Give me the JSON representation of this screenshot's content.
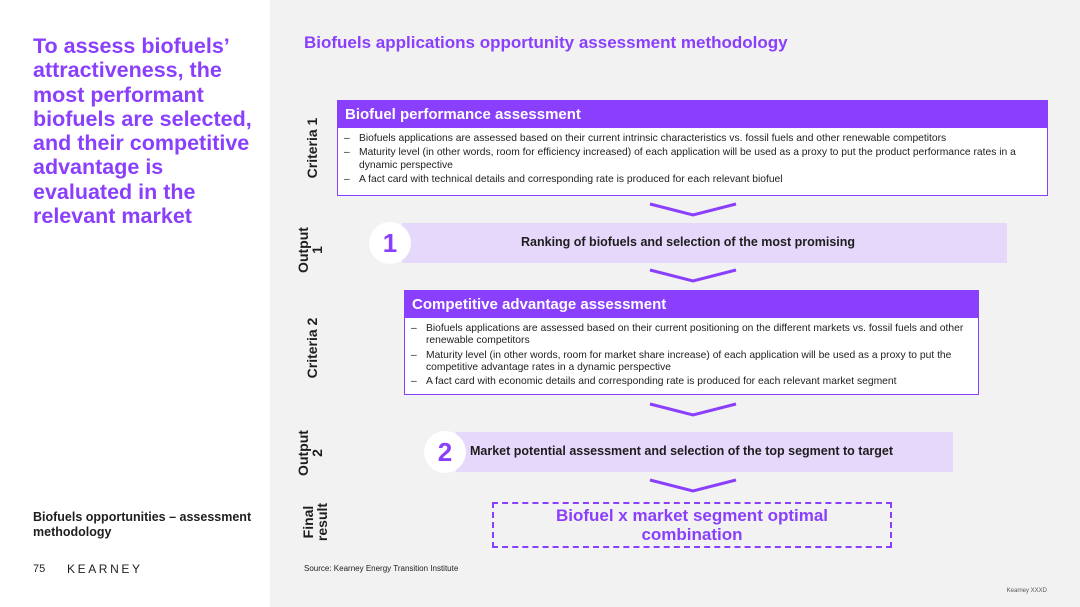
{
  "left": {
    "headline": "To assess biofuels’ attractiveness, the most performant biofuels are selected, and their competitive advantage is evaluated in the relevant market",
    "deck_title": "Biofuels opportunities – assessment methodology",
    "page_number": "75",
    "logo": "KEARNEY"
  },
  "slide_title": "Biofuels applications opportunity assessment methodology",
  "labels": {
    "criteria1": "Criteria 1",
    "output1_line1": "Output",
    "output1_line2": "1",
    "criteria2": "Criteria 2",
    "output2_line1": "Output",
    "output2_line2": "2",
    "final_line1": "Final",
    "final_line2": "result"
  },
  "criteria1": {
    "title": "Biofuel performance assessment",
    "bullets": [
      "Biofuels applications are assessed based on their current intrinsic characteristics vs. fossil fuels and other renewable competitors",
      "Maturity level (in other words, room for efficiency increased) of each application will be used as a proxy to put the product performance rates in a dynamic perspective",
      "A fact card with technical details and corresponding rate is produced for each relevant biofuel"
    ]
  },
  "output1": {
    "number": "1",
    "text": "Ranking of biofuels and selection of the most promising"
  },
  "criteria2": {
    "title": "Competitive advantage assessment",
    "bullets": [
      "Biofuels applications are assessed based on their current positioning on the different markets vs. fossil fuels and other renewable competitors",
      "Maturity level (in other words, room for market share increase) of each application will be used as a proxy to put the competitive advantage rates in a dynamic perspective",
      "A fact card with economic details and corresponding rate is produced for each relevant market segment"
    ]
  },
  "output2": {
    "number": "2",
    "text": "Market potential assessment and selection of the top segment to target"
  },
  "final": {
    "line1": "Biofuel x market segment optimal",
    "line2": "combination"
  },
  "bullet_dash": "–",
  "source": "Source: Kearney Energy Transition Institute",
  "footer_mark": "Kearney XXXD",
  "colors": {
    "accent": "#8a3ffc",
    "output_fill": "#e5d8fb",
    "panel_bg": "#f2f2f2"
  },
  "icons": [
    "chevron-down-icon"
  ]
}
